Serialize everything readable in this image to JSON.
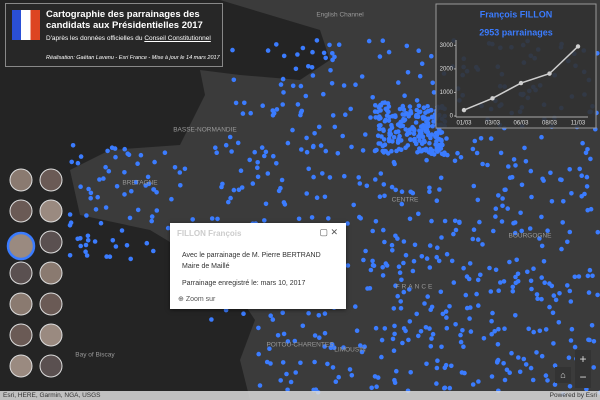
{
  "header": {
    "title": "Cartographie des parrainages des candidats aux Présidentielles 2017",
    "subtitle": "D'après les données officielles du",
    "subtitle_link": "Conseil Constitutionnel",
    "credit": "Réalisation: Gaëtan Lavenu - Esri France - Mise à jour le 14 mars 2017"
  },
  "chart_data": {
    "type": "line",
    "title": "François FILLON",
    "subtitle": "2953 parrainages",
    "categories": [
      "01/03",
      "03/03",
      "06/03",
      "08/03",
      "11/03"
    ],
    "values": [
      250,
      750,
      1400,
      1800,
      2953
    ],
    "color": "#cfcfcf",
    "ylim": [
      0,
      3100
    ],
    "yticks": [
      0,
      1000,
      2000,
      3000
    ],
    "grid": false
  },
  "popup": {
    "title": "FILLON François",
    "line1": "Avec le parrainage de M. Pierre BERTRAND",
    "line2": "Maire de Maillé",
    "line3": "Parrainage enregistré le: mars 10, 2017",
    "action": "Zoom sur"
  },
  "map_labels": [
    "English Channel",
    "BASSE-NORMANDIE",
    "BRETAGNE",
    "CENTRE",
    "BOURGOGNE",
    "FRANCE",
    "LIMOUSIN",
    "POITOU-CHARENTES",
    "Bay of Biscay"
  ],
  "attribution": "Esri, HERE, Garmin, NGA, USGS",
  "powered": "Powered by Esri"
}
